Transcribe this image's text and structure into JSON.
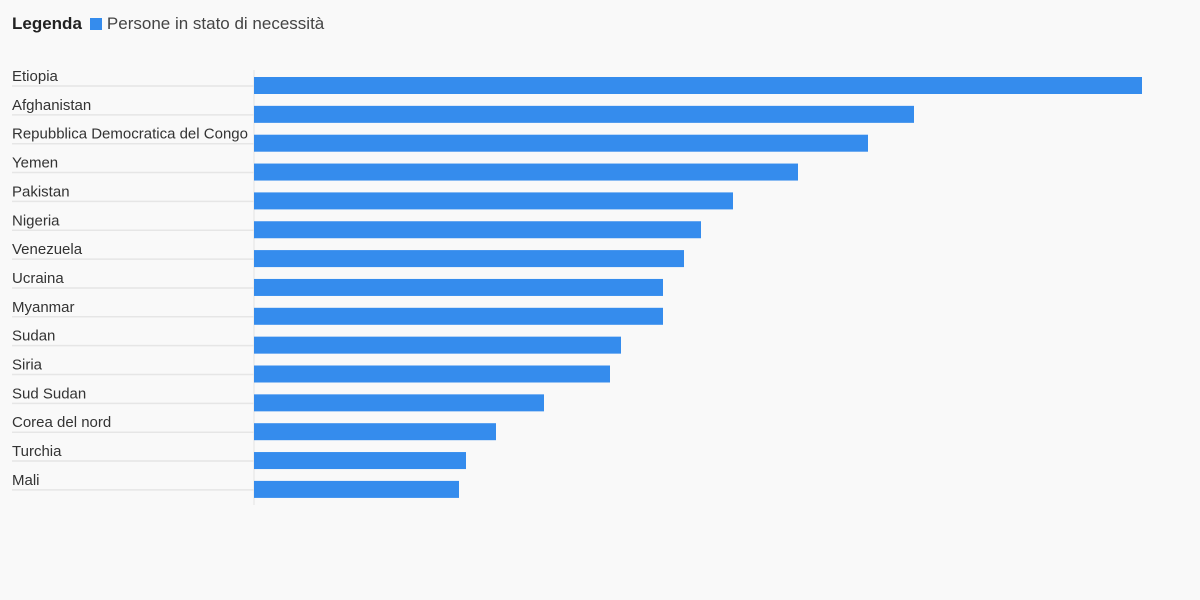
{
  "legend": {
    "title": "Legenda",
    "item_label": "Persone in stato di necessità"
  },
  "colors": {
    "bar": "#358ced",
    "background": "#f9f9f9",
    "separator": "#e6e6e6"
  },
  "chart_data": {
    "type": "bar",
    "orientation": "horizontal",
    "categories": [
      "Etiopia",
      "Afghanistan",
      "Repubblica Democratica del Congo",
      "Yemen",
      "Pakistan",
      "Nigeria",
      "Venezuela",
      "Ucraina",
      "Myanmar",
      "Sudan",
      "Siria",
      "Sud Sudan",
      "Corea del nord",
      "Turchia",
      "Mali"
    ],
    "series": [
      {
        "name": "Persone in stato di necessità",
        "values": [
          888,
          660,
          614,
          544,
          479,
          447,
          430,
          409,
          409,
          367,
          356,
          290,
          242,
          212,
          205
        ]
      }
    ],
    "xlim": [
      0,
      888
    ],
    "grid": false,
    "legend_position": "top-left"
  }
}
